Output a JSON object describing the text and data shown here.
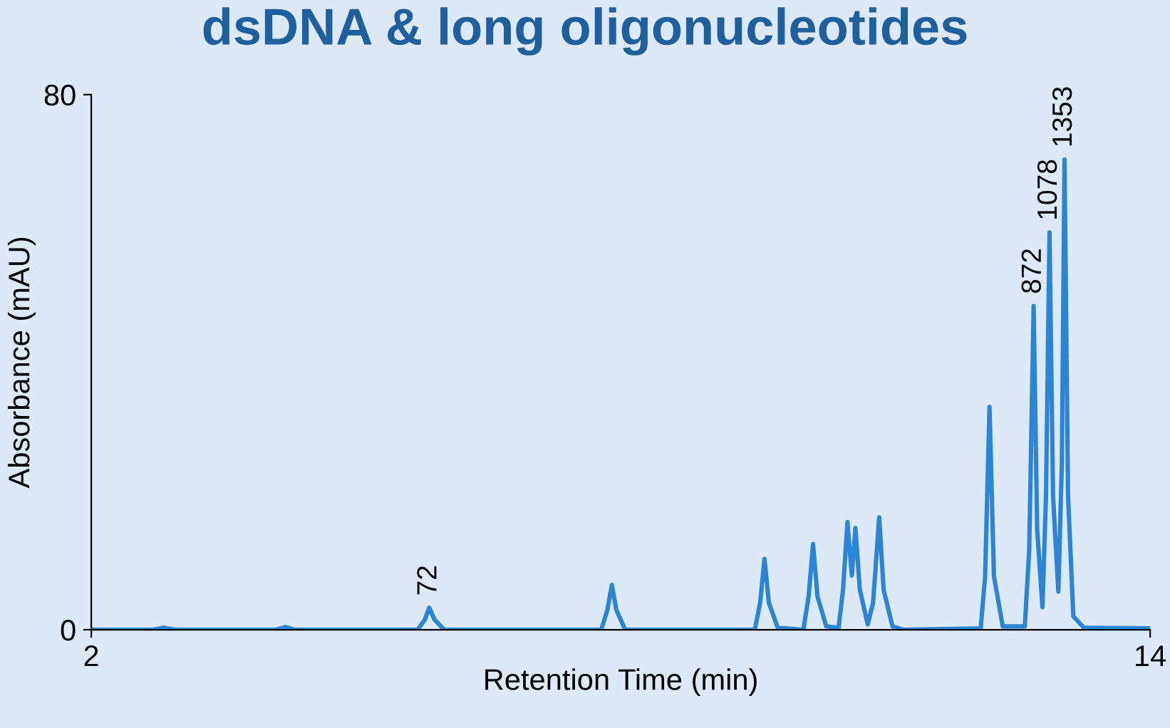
{
  "chart_data": {
    "type": "line",
    "title": "dsDNA & long oligonucleotides",
    "xlabel": "Retention Time (min)",
    "ylabel": "Absorbance (mAU)",
    "xlim": [
      2,
      14
    ],
    "xticks": [
      2,
      14
    ],
    "ylim": [
      0,
      80
    ],
    "yticks": [
      0,
      80
    ],
    "grid": false,
    "legend": false,
    "marker": "none",
    "line_style": "solid",
    "series": [
      {
        "color": "#2b85d6",
        "x": [
          2.0,
          2.7,
          2.82,
          2.95,
          4.1,
          4.2,
          4.3,
          5.7,
          5.78,
          5.83,
          5.89,
          6.0,
          7.78,
          7.85,
          7.9,
          7.95,
          8.05,
          9.52,
          9.58,
          9.63,
          9.68,
          9.78,
          10.07,
          10.13,
          10.18,
          10.23,
          10.33,
          10.47,
          10.52,
          10.57,
          10.62,
          10.66,
          10.71,
          10.8,
          10.86,
          10.93,
          10.98,
          11.08,
          11.2,
          12.08,
          12.13,
          12.18,
          12.23,
          12.33,
          12.58,
          12.63,
          12.68,
          12.72,
          12.78,
          12.82,
          12.86,
          12.9,
          12.96,
          13.0,
          13.03,
          13.07,
          13.13,
          13.25,
          14.0
        ],
        "values": [
          0,
          0,
          0.3,
          0,
          0,
          0.4,
          0,
          0,
          1.5,
          3.3,
          1.5,
          0,
          0,
          3,
          6.7,
          3,
          0,
          0,
          4,
          10.6,
          4,
          0.3,
          0,
          5,
          12.8,
          5,
          0.5,
          0.3,
          6,
          16.1,
          8.1,
          15.2,
          6,
          0.8,
          4,
          16.8,
          6,
          0.5,
          0,
          0.2,
          8,
          33.3,
          8,
          0.5,
          0.5,
          12,
          48.4,
          15,
          3.4,
          20,
          59.4,
          20,
          5.7,
          25,
          70.3,
          20,
          2,
          0.3,
          0.2
        ]
      }
    ],
    "annotations": [
      {
        "text": "72",
        "x": 5.83,
        "y": 3.3
      },
      {
        "text": "872",
        "x": 12.68,
        "y": 48.4
      },
      {
        "text": "1078",
        "x": 12.86,
        "y": 59.4
      },
      {
        "text": "1353",
        "x": 13.03,
        "y": 70.3
      }
    ]
  }
}
